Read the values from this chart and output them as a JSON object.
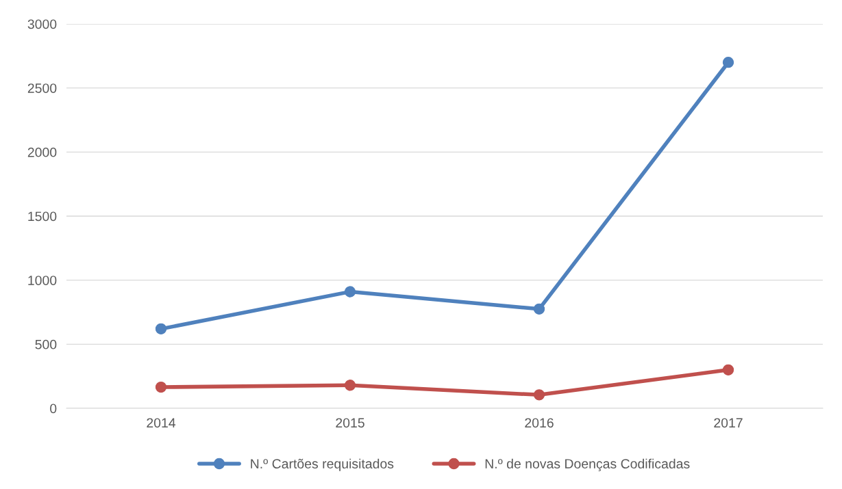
{
  "chart_data": {
    "type": "line",
    "categories": [
      "2014",
      "2015",
      "2016",
      "2017"
    ],
    "series": [
      {
        "name": "N.º Cartões requisitados",
        "color": "#4f81bd",
        "values": [
          620,
          910,
          775,
          2700
        ]
      },
      {
        "name": "N.º de novas Doenças Codificadas",
        "color": "#c0504d",
        "values": [
          165,
          180,
          105,
          300
        ]
      }
    ],
    "ylim": [
      0,
      3000
    ],
    "yticks": [
      0,
      500,
      1000,
      1500,
      2000,
      2500,
      3000
    ],
    "grid": "y",
    "legend": "bottom",
    "marker": "circle",
    "line_style": "solid"
  }
}
